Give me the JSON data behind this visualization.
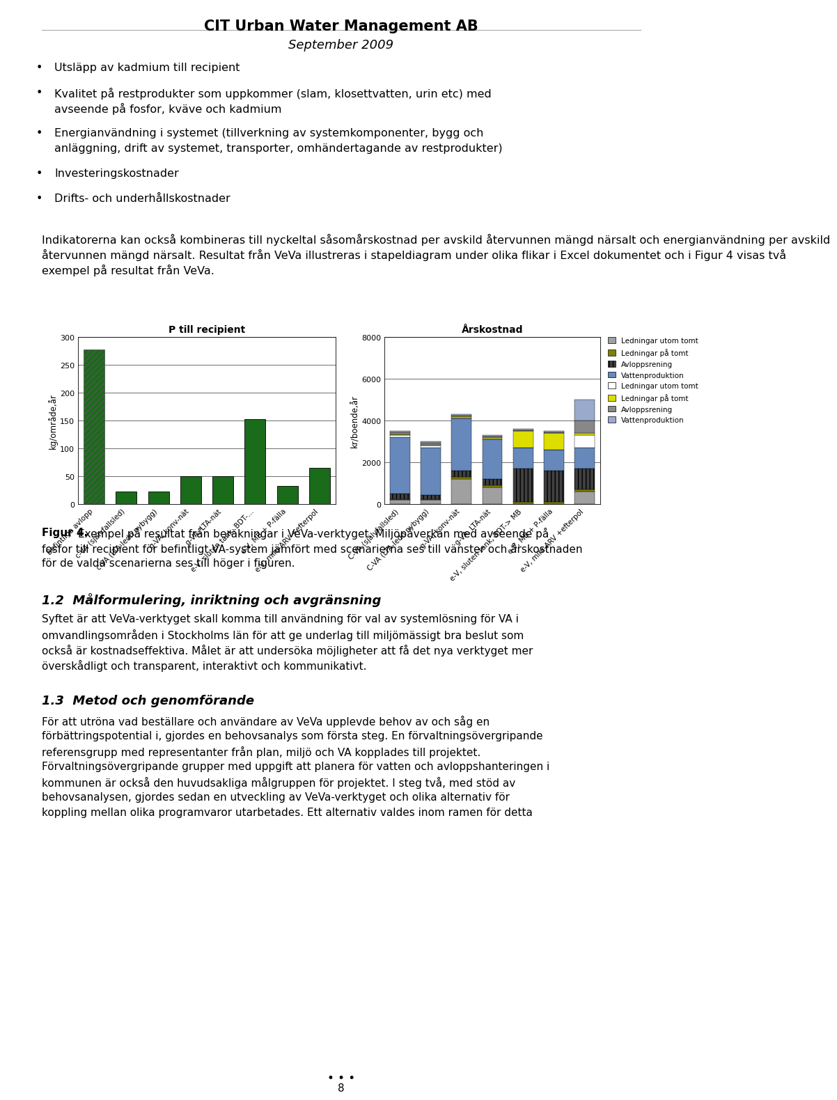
{
  "header_title": "CIT Urban Water Management AB",
  "header_subtitle": "September 2009",
  "chart1_title": "P till recipient",
  "chart1_ylabel": "kg/område,år",
  "chart1_categories": [
    "Befintliga avlopp",
    "c-VA (självfallsled)",
    "c-VA (LTA-ledn nybygg)",
    "g-VA, konv-nät",
    "g-VA, LTA-nät",
    "e-V, sluten tank, BDT-...",
    "e-V, MB + P-fälla",
    "e-V, mini-ARV +efterpol"
  ],
  "chart1_values": [
    278,
    22,
    22,
    50,
    50,
    153,
    32,
    65
  ],
  "chart1_bar_color": "#1a6b1a",
  "chart1_hatch": [
    "////",
    "",
    "",
    "",
    "",
    "",
    "",
    ""
  ],
  "chart2_title": "Årskostnad",
  "chart2_ylabel": "kr/boende,år",
  "chart2_categories": [
    "C-VA (självfallsled)",
    "C-VA (LTA-ledn nybygg)",
    "g-VA, konv-nät",
    "g-VA, LTA-nät",
    "e-V, sluten tank, BDT-> MB",
    "e-V, MB + P-fälla",
    "e-V, mini-ARV +efterpol"
  ],
  "chart2_stack": [
    [
      200,
      50,
      250,
      2700,
      100,
      50,
      100,
      50
    ],
    [
      200,
      50,
      200,
      2250,
      100,
      50,
      100,
      50
    ],
    [
      1200,
      100,
      300,
      2500,
      50,
      50,
      50,
      50
    ],
    [
      800,
      100,
      300,
      1900,
      50,
      50,
      50,
      50
    ],
    [
      0,
      100,
      1600,
      1000,
      0,
      800,
      50,
      50
    ],
    [
      0,
      100,
      1500,
      1000,
      0,
      800,
      50,
      50
    ],
    [
      600,
      100,
      1000,
      1000,
      600,
      100,
      600,
      1000
    ]
  ],
  "chart2_seg_colors": [
    "#A0A0A0",
    "#808000",
    "#404040",
    "#6688BB",
    "#FFFFFF",
    "#DDDD00",
    "#888888",
    "#99AACC"
  ],
  "chart2_seg_hatches": [
    "",
    "",
    "|||",
    "",
    "",
    "",
    "",
    ""
  ],
  "chart2_legend": [
    [
      "#A0A0A0",
      "",
      "Ledningar utom tomt"
    ],
    [
      "#808000",
      "",
      "Ledningar på tomt"
    ],
    [
      "#404040",
      "|||",
      "Avloppsrening"
    ],
    [
      "#6688BB",
      "",
      "Vattenproduktion"
    ],
    [
      "#FFFFFF",
      "",
      "Ledningar utom tomt"
    ],
    [
      "#DDDD00",
      "",
      "Ledningar på tomt"
    ],
    [
      "#888888",
      "",
      "Avloppsrening"
    ],
    [
      "#99AACC",
      "",
      "Vattenproduktion"
    ]
  ],
  "section_1_2_title": "1.2  Målformulering, inriktning och avgränsning",
  "section_1_3_title": "1.3  Metod och genomförande",
  "footer_dots": "• • •",
  "footer_page": "8"
}
